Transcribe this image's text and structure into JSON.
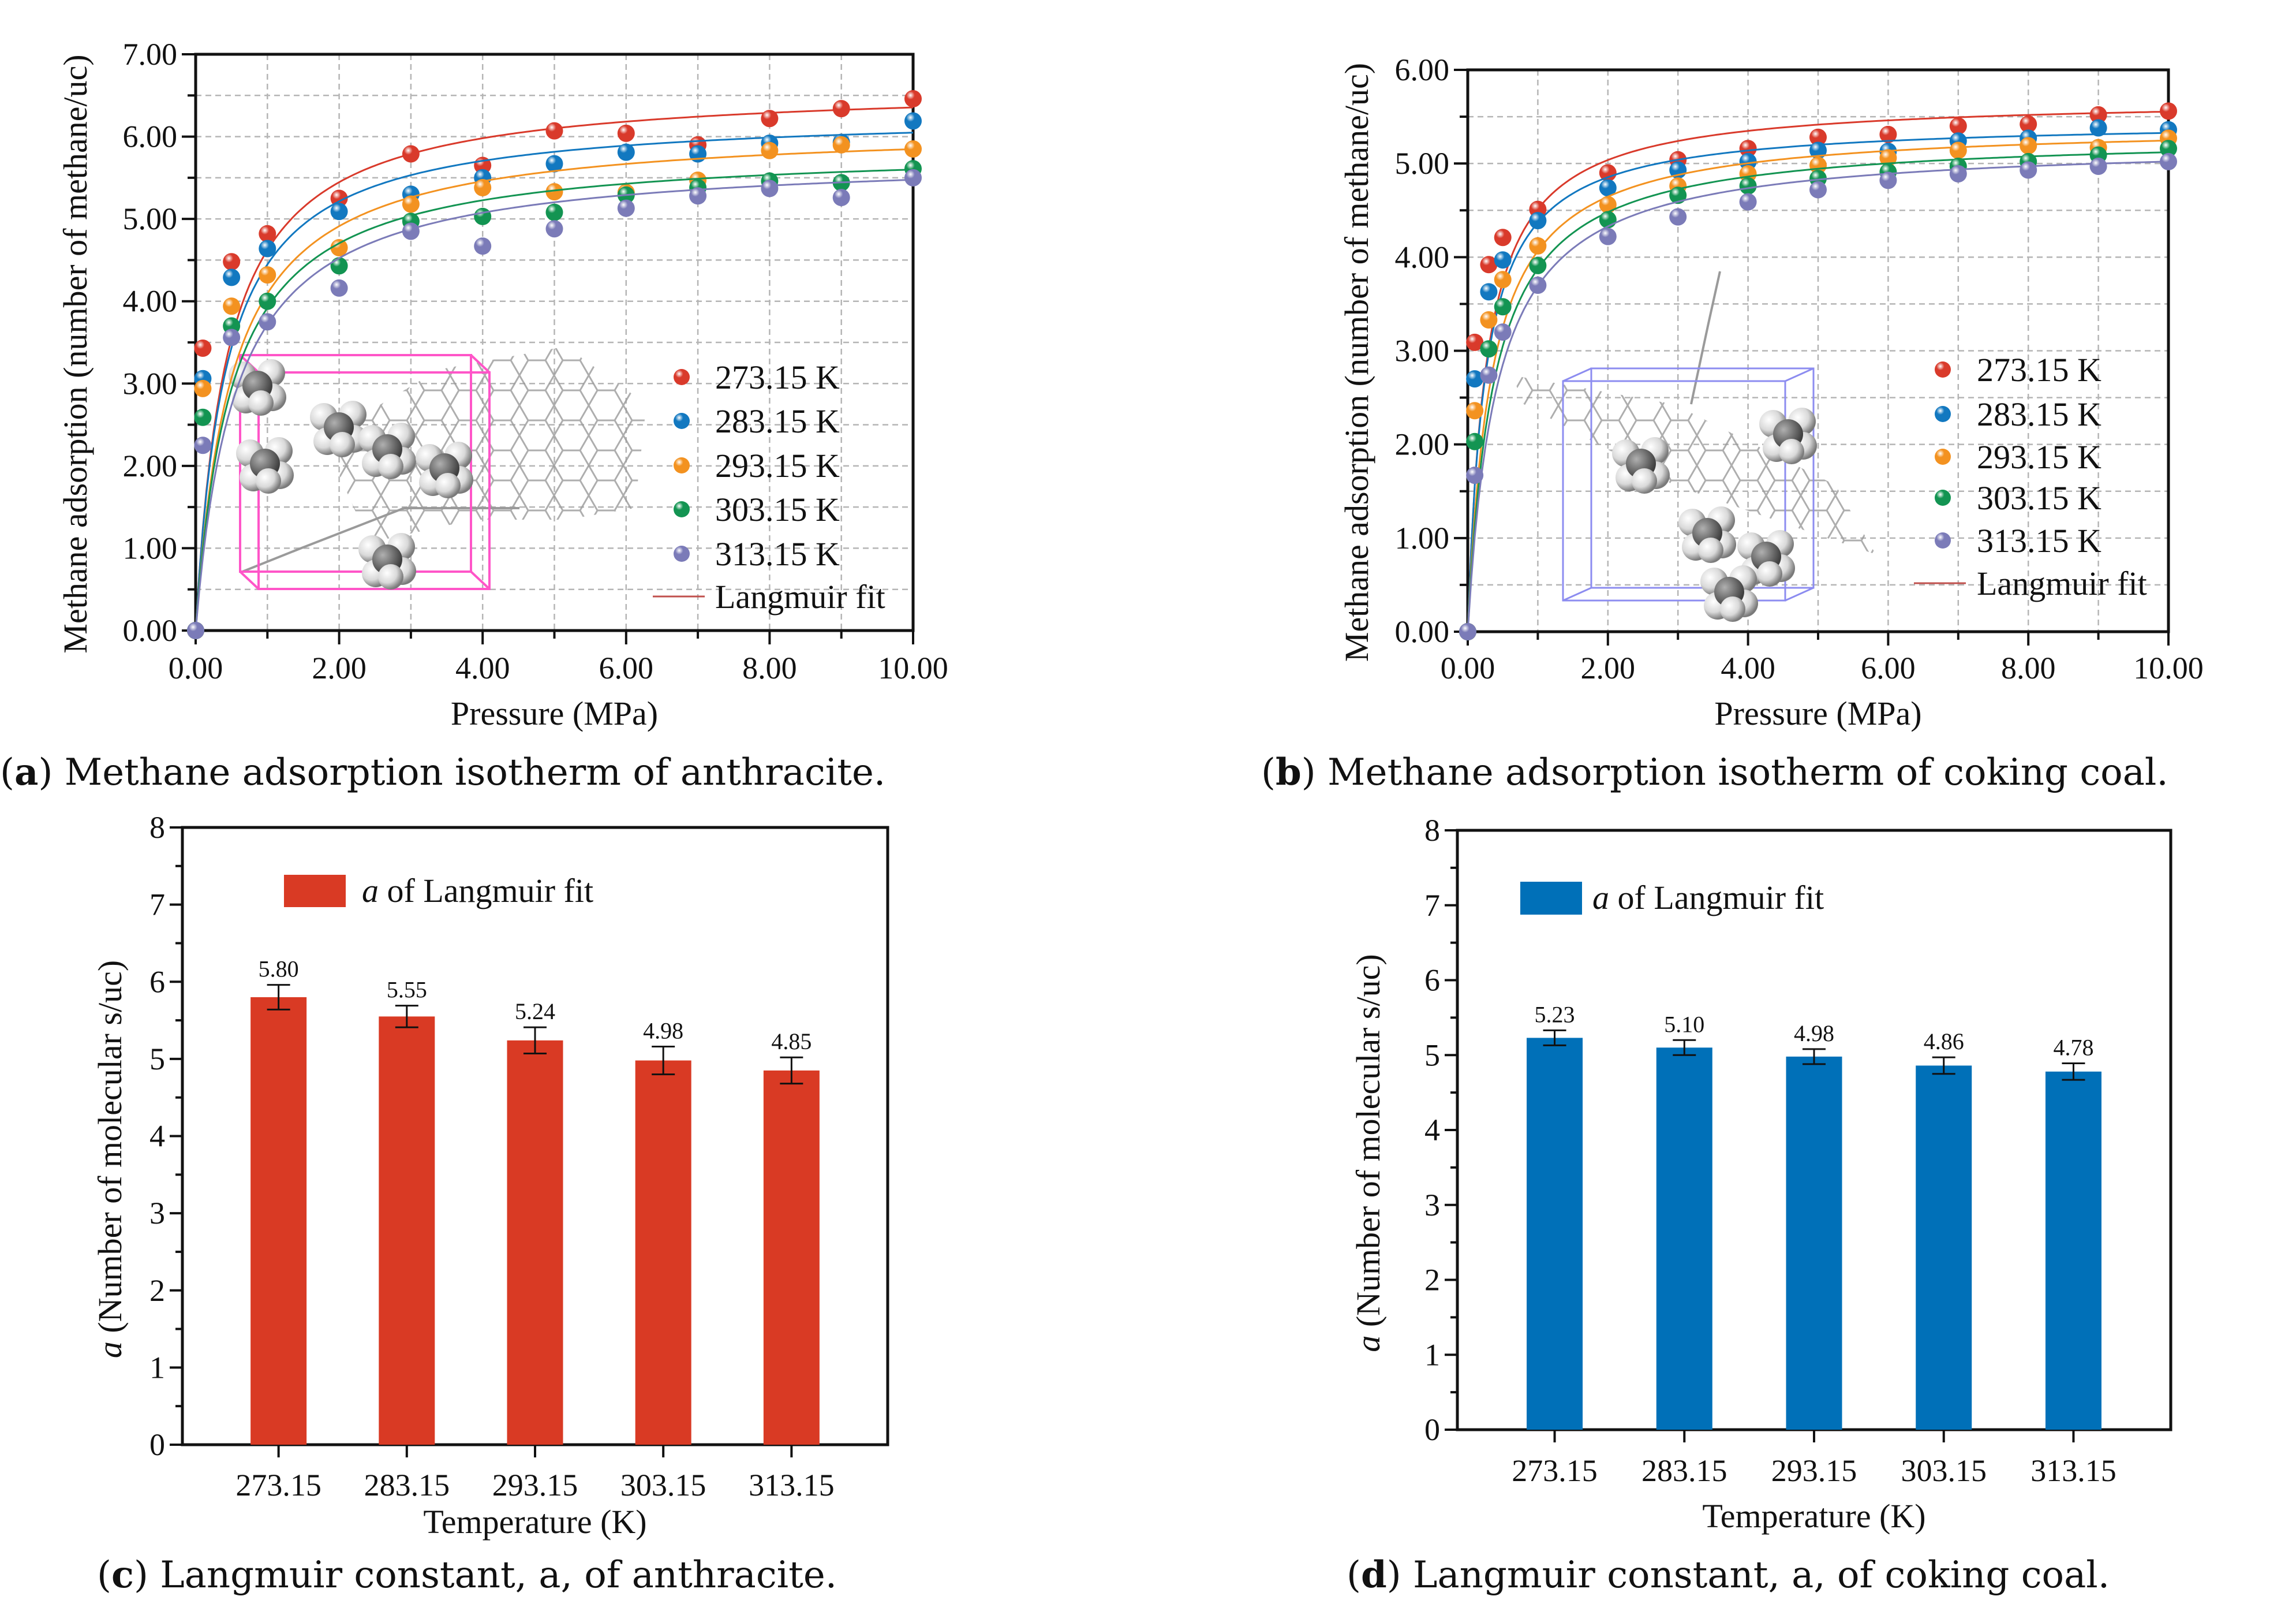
{
  "captions": [
    {
      "letter": "a",
      "text": "Methane adsorption isotherm of anthracite."
    },
    {
      "letter": "b",
      "text": "Methane adsorption isotherm of coking coal."
    },
    {
      "letter": "c",
      "text": "Langmuir constant, a, of anthracite."
    },
    {
      "letter": "d",
      "text": "Langmuir constant, a, of coking coal."
    }
  ],
  "chart_data": [
    {
      "type": "scatter",
      "title": "Methane adsorption isotherm of anthracite",
      "xlabel": "Pressure (MPa)",
      "ylabel": "Methane adsorption (number of methane/uc)",
      "xlim": [
        0,
        10
      ],
      "ylim": [
        0,
        7
      ],
      "xticks": [
        0,
        2,
        4,
        6,
        8,
        10
      ],
      "xtick_labels": [
        "0.00",
        "2.00",
        "4.00",
        "6.00",
        "8.00",
        "10.00"
      ],
      "yticks": [
        0,
        1,
        2,
        3,
        4,
        5,
        6,
        7
      ],
      "ytick_labels": [
        "0.00",
        "1.00",
        "2.00",
        "3.00",
        "4.00",
        "5.00",
        "6.00",
        "7.00"
      ],
      "grid": true,
      "legend_position": "bottom-right",
      "fit_label": "Langmuir fit",
      "fit_color": "#c0504d",
      "x": [
        0,
        0.1,
        0.5,
        1,
        2,
        3,
        4,
        5,
        6,
        7,
        8,
        9,
        10
      ],
      "series": [
        {
          "name": "273.15 K",
          "color": "#d93a2b",
          "values": [
            0,
            3.43,
            4.48,
            4.82,
            5.25,
            5.79,
            5.65,
            6.07,
            6.04,
            5.9,
            6.22,
            6.34,
            6.46
          ],
          "fit": {
            "vm": 6.63,
            "b": 2.3
          }
        },
        {
          "name": "283.15 K",
          "color": "#1278c0",
          "values": [
            0,
            3.06,
            4.29,
            4.64,
            5.09,
            5.3,
            5.5,
            5.67,
            5.81,
            5.79,
            5.92,
            5.93,
            6.19
          ],
          "fit": {
            "vm": 6.3,
            "b": 2.4
          }
        },
        {
          "name": "293.15 K",
          "color": "#f39220",
          "values": [
            0,
            2.94,
            3.94,
            4.32,
            4.65,
            5.18,
            5.38,
            5.33,
            5.32,
            5.47,
            5.83,
            5.9,
            5.85
          ],
          "fit": {
            "vm": 6.14,
            "b": 2.0
          }
        },
        {
          "name": "303.15 K",
          "color": "#139452",
          "values": [
            0,
            2.59,
            3.7,
            4.0,
            4.43,
            4.97,
            5.03,
            5.08,
            5.29,
            5.38,
            5.46,
            5.44,
            5.61
          ],
          "fit": {
            "vm": 5.88,
            "b": 2.0
          }
        },
        {
          "name": "313.15 K",
          "color": "#7b7bb8",
          "values": [
            0,
            2.25,
            3.56,
            3.75,
            4.16,
            4.85,
            4.67,
            4.88,
            5.13,
            5.28,
            5.37,
            5.26,
            5.5
          ],
          "fit": {
            "vm": 5.78,
            "b": 1.8
          }
        }
      ]
    },
    {
      "type": "scatter",
      "title": "Methane adsorption isotherm of coking coal",
      "xlabel": "Pressure (MPa)",
      "ylabel": "Methane adsorption (number of methane/uc)",
      "xlim": [
        0,
        10
      ],
      "ylim": [
        0,
        6
      ],
      "xticks": [
        0,
        2,
        4,
        6,
        8,
        10
      ],
      "xtick_labels": [
        "0.00",
        "2.00",
        "4.00",
        "6.00",
        "8.00",
        "10.00"
      ],
      "yticks": [
        0,
        1,
        2,
        3,
        4,
        5,
        6
      ],
      "ytick_labels": [
        "0.00",
        "1.00",
        "2.00",
        "3.00",
        "4.00",
        "5.00",
        "6.00"
      ],
      "grid": true,
      "legend_position": "bottom-right",
      "fit_label": "Langmuir fit",
      "fit_color": "#c0504d",
      "x": [
        0,
        0.1,
        0.3,
        0.5,
        1,
        2,
        3,
        4,
        5,
        6,
        7,
        8,
        9,
        10
      ],
      "series": [
        {
          "name": "273.15 K",
          "color": "#d93a2b",
          "values": [
            0,
            3.09,
            3.92,
            4.21,
            4.51,
            4.9,
            5.04,
            5.16,
            5.28,
            5.31,
            5.4,
            5.42,
            5.52,
            5.56
          ],
          "fit": {
            "vm": 5.7,
            "b": 3.8
          }
        },
        {
          "name": "283.15 K",
          "color": "#1278c0",
          "values": [
            0,
            2.7,
            3.63,
            3.97,
            4.39,
            4.74,
            4.93,
            5.02,
            5.14,
            5.13,
            5.24,
            5.27,
            5.38,
            5.36
          ],
          "fit": {
            "vm": 5.46,
            "b": 4.0
          }
        },
        {
          "name": "293.15 K",
          "color": "#f39220",
          "values": [
            0,
            2.36,
            3.33,
            3.76,
            4.12,
            4.56,
            4.76,
            4.89,
            4.98,
            5.06,
            5.14,
            5.19,
            5.17,
            5.27
          ],
          "fit": {
            "vm": 5.42,
            "b": 3.0
          }
        },
        {
          "name": "303.15 K",
          "color": "#139452",
          "values": [
            0,
            2.03,
            3.02,
            3.47,
            3.91,
            4.4,
            4.66,
            4.76,
            4.84,
            4.91,
            4.97,
            5.02,
            5.09,
            5.16
          ],
          "fit": {
            "vm": 5.31,
            "b": 2.7
          }
        },
        {
          "name": "313.15 K",
          "color": "#7b7bb8",
          "values": [
            0,
            1.67,
            2.74,
            3.2,
            3.7,
            4.22,
            4.43,
            4.59,
            4.72,
            4.82,
            4.89,
            4.93,
            4.97,
            5.02
          ],
          "fit": {
            "vm": 5.23,
            "b": 2.4
          }
        }
      ]
    },
    {
      "type": "bar",
      "title": "Langmuir constant, a, of anthracite",
      "xlabel": "Temperature (K)",
      "ylabel_var": "a",
      "ylabel": " (Number of molecular s/uc)",
      "legend_var": "a",
      "legend_label": " of Langmuir fit",
      "legend_position": "top-left",
      "color": "#d93a24",
      "categories": [
        "273.15",
        "283.15",
        "293.15",
        "303.15",
        "313.15"
      ],
      "values": [
        5.8,
        5.55,
        5.24,
        4.98,
        4.85
      ],
      "value_labels": [
        "5.80",
        "5.55",
        "5.24",
        "4.98",
        "4.85"
      ],
      "errors": [
        0.16,
        0.14,
        0.17,
        0.18,
        0.17
      ],
      "ylim": [
        0,
        8
      ],
      "yticks": [
        0,
        1,
        2,
        3,
        4,
        5,
        6,
        7,
        8
      ],
      "ytick_labels": [
        "0",
        "1",
        "2",
        "3",
        "4",
        "5",
        "6",
        "7",
        "8"
      ]
    },
    {
      "type": "bar",
      "title": "Langmuir constant, a, of coking coal",
      "xlabel": "Temperature (K)",
      "ylabel_var": "a",
      "ylabel": " (Number of molecular s/uc)",
      "legend_var": "a",
      "legend_label": " of Langmuir fit",
      "legend_position": "top-left",
      "color": "#0070b8",
      "categories": [
        "273.15",
        "283.15",
        "293.15",
        "303.15",
        "313.15"
      ],
      "values": [
        5.23,
        5.1,
        4.98,
        4.86,
        4.78
      ],
      "value_labels": [
        "5.23",
        "5.10",
        "4.98",
        "4.86",
        "4.78"
      ],
      "errors": [
        0.1,
        0.1,
        0.1,
        0.11,
        0.11
      ],
      "ylim": [
        0,
        8
      ],
      "yticks": [
        0,
        1,
        2,
        3,
        4,
        5,
        6,
        7,
        8
      ],
      "ytick_labels": [
        "0",
        "1",
        "2",
        "3",
        "4",
        "5",
        "6",
        "7",
        "8"
      ]
    }
  ]
}
